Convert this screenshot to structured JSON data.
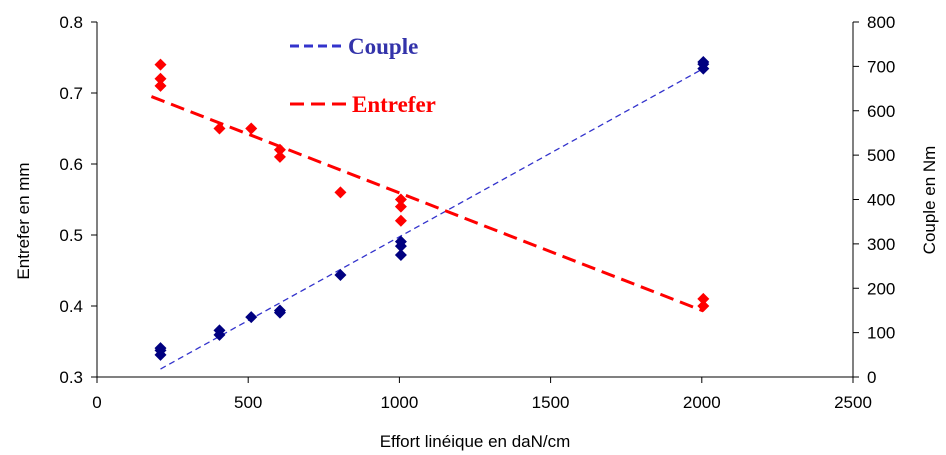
{
  "chart_data": {
    "type": "scatter",
    "title": "",
    "xlabel": "Effort linéique en daN/cm",
    "ylabel_left": "Entrefer en mm",
    "ylabel_right": "Couple en Nm",
    "xlim": [
      0,
      2500
    ],
    "ylim_left": [
      0.3,
      0.8
    ],
    "ylim_right": [
      0,
      800
    ],
    "x_ticks": [
      0,
      500,
      1000,
      1500,
      2000,
      2500
    ],
    "y_left_ticks": [
      0.3,
      0.4,
      0.5,
      0.6,
      0.7,
      0.8
    ],
    "y_right_ticks": [
      0,
      100,
      200,
      300,
      400,
      500,
      600,
      700,
      800
    ],
    "y_left_tick_labels": [
      "0.3",
      "0.4",
      "0.5",
      "0.6",
      "0.7",
      "0.8"
    ],
    "grid": false,
    "legend_position": "top-center",
    "series": [
      {
        "name": "Couple",
        "axis": "right",
        "color": "#000080",
        "trend_color": "#3333cc",
        "marker": "diamond",
        "points": [
          [
            210,
            50
          ],
          [
            210,
            60
          ],
          [
            210,
            65
          ],
          [
            405,
            95
          ],
          [
            405,
            105
          ],
          [
            510,
            135
          ],
          [
            605,
            145
          ],
          [
            605,
            150
          ],
          [
            805,
            230
          ],
          [
            1005,
            275
          ],
          [
            1005,
            295
          ],
          [
            1005,
            305
          ],
          [
            2005,
            695
          ],
          [
            2005,
            705
          ],
          [
            2005,
            710
          ]
        ],
        "trendline": [
          [
            210,
            18
          ],
          [
            2005,
            695
          ]
        ]
      },
      {
        "name": "Entrefer",
        "axis": "left",
        "color": "#ff0000",
        "trend_color": "#ff0000",
        "marker": "diamond",
        "points": [
          [
            210,
            0.71
          ],
          [
            210,
            0.72
          ],
          [
            210,
            0.74
          ],
          [
            405,
            0.65
          ],
          [
            510,
            0.65
          ],
          [
            605,
            0.61
          ],
          [
            605,
            0.62
          ],
          [
            805,
            0.56
          ],
          [
            1005,
            0.52
          ],
          [
            1005,
            0.54
          ],
          [
            1005,
            0.55
          ],
          [
            2005,
            0.4
          ],
          [
            2005,
            0.41
          ]
        ],
        "trendline": [
          [
            180,
            0.695
          ],
          [
            2005,
            0.393
          ]
        ]
      }
    ]
  }
}
